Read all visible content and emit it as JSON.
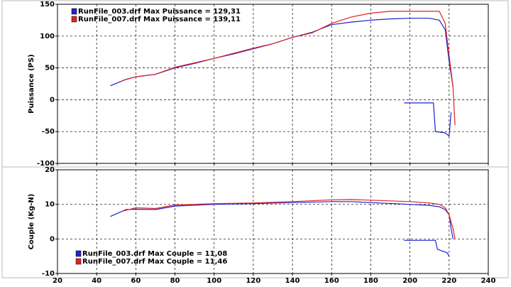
{
  "chart_data": [
    {
      "type": "line",
      "ylabel": "Puissance (PS)",
      "xlim": [
        20,
        240
      ],
      "ylim": [
        -100,
        150
      ],
      "xticks": [
        20,
        40,
        60,
        80,
        100,
        120,
        140,
        160,
        180,
        200,
        220,
        240
      ],
      "show_xtick_labels": false,
      "yticks": [
        -100,
        -50,
        0,
        50,
        100,
        150
      ],
      "grid": true,
      "legend": "upper left",
      "series": [
        {
          "name": "RunFile_003.drf Max Puissance = 129,31",
          "color": "#2222cc",
          "x": [
            47,
            55,
            60,
            70,
            80,
            90,
            100,
            110,
            120,
            130,
            140,
            150,
            160,
            170,
            180,
            190,
            200,
            210,
            215,
            218,
            220,
            221,
            222,
            null,
            197,
            212,
            213,
            218,
            220,
            221
          ],
          "values": [
            22,
            32,
            36,
            40,
            50,
            57,
            65,
            72,
            80,
            88,
            98,
            106,
            118,
            122,
            125,
            127,
            128,
            128,
            125,
            110,
            60,
            40,
            20,
            null,
            -5,
            -5,
            -50,
            -52,
            -57,
            -20
          ]
        },
        {
          "name": "RunFile_007.drf Max Puissance = 139,11",
          "color": "#dd2222",
          "x": [
            53,
            60,
            70,
            80,
            90,
            100,
            110,
            120,
            130,
            140,
            150,
            160,
            170,
            180,
            190,
            200,
            210,
            215,
            218,
            220,
            222,
            223
          ],
          "values": [
            30,
            36,
            40,
            51,
            58,
            65,
            73,
            81,
            88,
            98,
            105,
            120,
            130,
            136,
            139,
            139,
            139,
            139,
            120,
            70,
            20,
            -40
          ]
        }
      ]
    },
    {
      "type": "line",
      "ylabel": "Couple (Kg-N)",
      "xlim": [
        20,
        240
      ],
      "ylim": [
        -10,
        20
      ],
      "xticks": [
        20,
        40,
        60,
        80,
        100,
        120,
        140,
        160,
        180,
        200,
        220,
        240
      ],
      "show_xtick_labels": true,
      "yticks": [
        -10,
        0,
        10,
        20
      ],
      "grid": true,
      "legend": "lower left",
      "series": [
        {
          "name": "RunFile_003.drf Max Couple = 11,08",
          "color": "#2222cc",
          "x": [
            47,
            55,
            60,
            70,
            80,
            100,
            120,
            140,
            160,
            170,
            180,
            200,
            210,
            215,
            218,
            220,
            221,
            222,
            null,
            197,
            213,
            214,
            219,
            220
          ],
          "values": [
            6.5,
            8.5,
            8.6,
            8.5,
            9.5,
            10,
            10.2,
            10.5,
            10.8,
            10.8,
            10.5,
            10,
            9.7,
            9.3,
            8.5,
            7,
            3,
            0,
            null,
            -0.4,
            -0.4,
            -3,
            -4,
            -5
          ]
        },
        {
          "name": "RunFile_007.drf Max Couple = 11,46",
          "color": "#dd2222",
          "x": [
            53,
            60,
            70,
            80,
            100,
            120,
            140,
            160,
            170,
            180,
            200,
            210,
            215,
            218,
            220,
            222,
            223
          ],
          "values": [
            8,
            9,
            8.8,
            9.8,
            10.2,
            10.4,
            10.8,
            11.3,
            11.4,
            11.2,
            10.8,
            10.4,
            10,
            9,
            7,
            3,
            0
          ]
        }
      ]
    }
  ]
}
